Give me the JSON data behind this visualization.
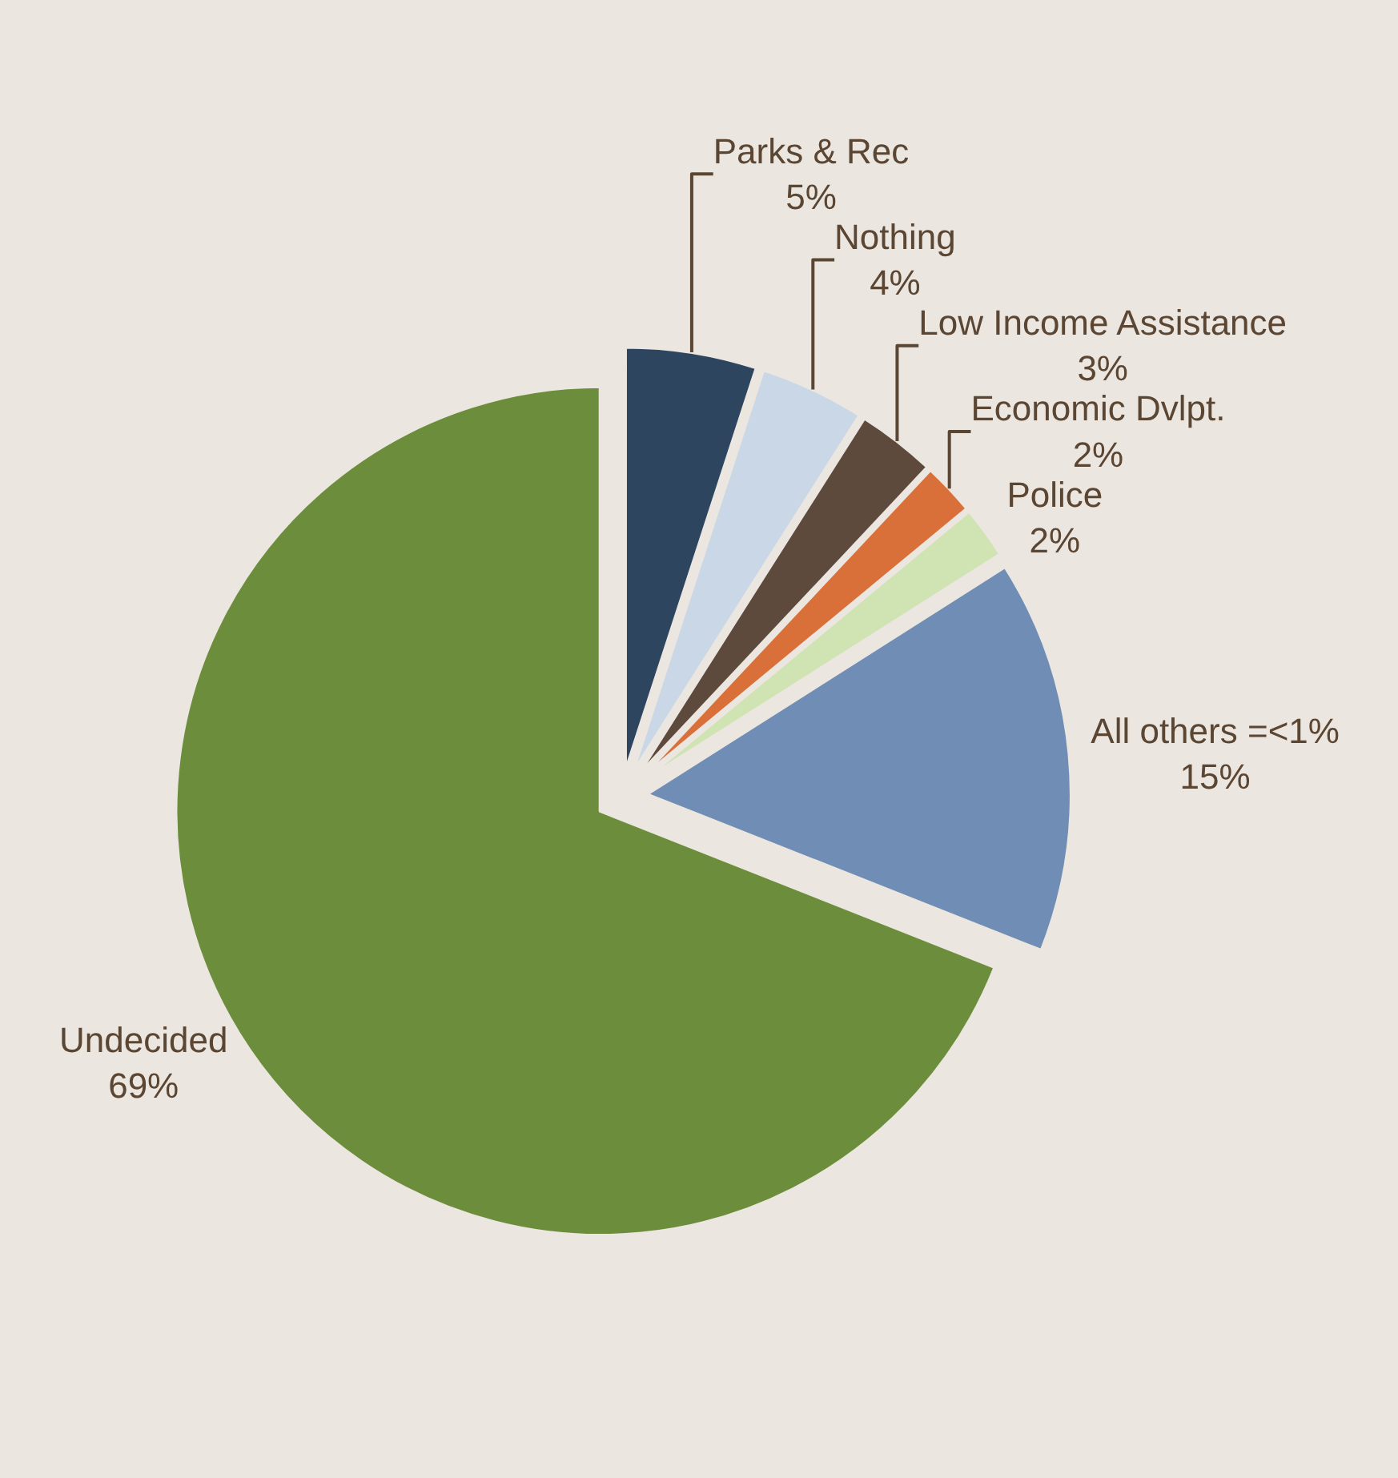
{
  "chart_data": {
    "type": "pie",
    "categories": [
      "Parks & Rec",
      "Nothing",
      "Low Income Assistance",
      "Economic Dvlpt.",
      "Police",
      "All others =<1%",
      "Undecided"
    ],
    "values": [
      5,
      4,
      3,
      2,
      2,
      15,
      69
    ],
    "value_labels": [
      "5%",
      "4%",
      "3%",
      "2%",
      "2%",
      "15%",
      "69%"
    ],
    "colors": [
      "#2e4560",
      "#c9d7e6",
      "#5e4a3c",
      "#d9703a",
      "#cfe3b3",
      "#6f8db5",
      "#6c8e3c"
    ],
    "legend": false
  }
}
